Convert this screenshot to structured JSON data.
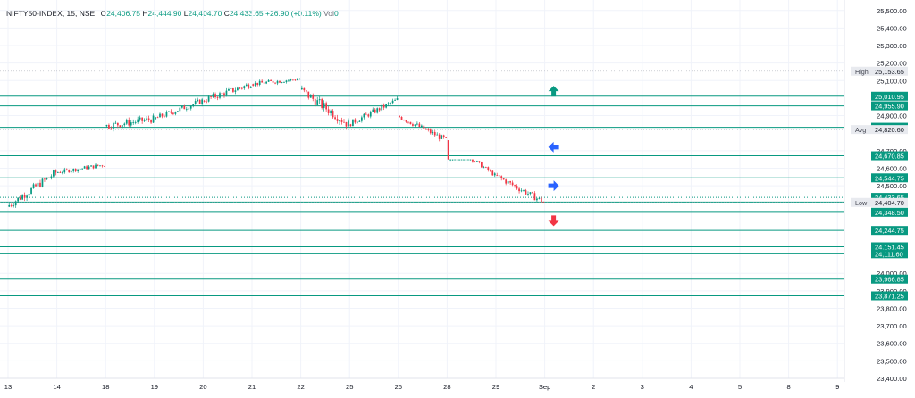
{
  "legend": {
    "symbol": "NIFTY50-INDEX, 15, NSE",
    "o_label": "O",
    "o": "24,406.75",
    "h_label": "H",
    "h": "24,444.90",
    "l_label": "L",
    "l": "24,404.70",
    "c_label": "C",
    "c": "24,433.65",
    "change": "+26.90 (+0.11%)",
    "vol_label": "Vol",
    "vol": "0"
  },
  "colors": {
    "up": "#089981",
    "down": "#f23645",
    "level": "#089981",
    "grid": "#f0f3fa",
    "arrow_blue": "#2962ff",
    "arrow_green": "#089981",
    "arrow_red": "#f23645"
  },
  "chart_data": {
    "type": "candlestick",
    "yaxis": {
      "ylim": [
        23400,
        25560
      ],
      "ticks": [
        {
          "value": 25500,
          "label": "25,500.00"
        },
        {
          "value": 25400,
          "label": "25,400.00"
        },
        {
          "value": 25300,
          "label": "25,300.00"
        },
        {
          "value": 25200,
          "label": "25,200.00"
        },
        {
          "value": 25100,
          "label": "25,100.00"
        },
        {
          "value": 24900,
          "label": "24,900.00"
        },
        {
          "value": 24700,
          "label": "24,700.00"
        },
        {
          "value": 24600,
          "label": "24,600.00"
        },
        {
          "value": 24500,
          "label": "24,500.00"
        },
        {
          "value": 24000,
          "label": "24,000.00"
        },
        {
          "value": 23900,
          "label": "23,900.00"
        },
        {
          "value": 23800,
          "label": "23,800.00"
        },
        {
          "value": 23700,
          "label": "23,700.00"
        },
        {
          "value": 23600,
          "label": "23,600.00"
        },
        {
          "value": 23500,
          "label": "23,500.00"
        },
        {
          "value": 23400,
          "label": "23,400.00"
        }
      ]
    },
    "xaxis": {
      "ticks": [
        {
          "index": 0,
          "label": "13"
        },
        {
          "index": 1,
          "label": "14"
        },
        {
          "index": 2,
          "label": "18"
        },
        {
          "index": 3,
          "label": "19"
        },
        {
          "index": 4,
          "label": "20"
        },
        {
          "index": 5,
          "label": "21"
        },
        {
          "index": 6,
          "label": "22"
        },
        {
          "index": 7,
          "label": "25"
        },
        {
          "index": 8,
          "label": "26"
        },
        {
          "index": 9,
          "label": "28"
        },
        {
          "index": 10,
          "label": "29"
        },
        {
          "index": 11,
          "label": "Sep"
        },
        {
          "index": 12,
          "label": "2"
        },
        {
          "index": 13,
          "label": "3"
        },
        {
          "index": 14,
          "label": "4"
        },
        {
          "index": 15,
          "label": "5"
        },
        {
          "index": 16,
          "label": "8"
        },
        {
          "index": 17,
          "label": "9"
        }
      ]
    },
    "sessions": [
      {
        "label": "13",
        "open": 24380,
        "close": 24575,
        "high": 24600,
        "low": 24350
      },
      {
        "label": "14",
        "open": 24575,
        "close": 24620,
        "high": 24670,
        "low": 24540
      },
      {
        "label": "18",
        "open": 24840,
        "close": 24880,
        "high": 25030,
        "low": 24800
      },
      {
        "label": "19",
        "open": 24880,
        "close": 24985,
        "high": 25010,
        "low": 24820
      },
      {
        "label": "20",
        "open": 24985,
        "close": 25080,
        "high": 25100,
        "low": 24890
      },
      {
        "label": "21",
        "open": 25080,
        "close": 25110,
        "high": 25153.65,
        "low": 25020
      },
      {
        "label": "22",
        "open": 25050,
        "close": 24850,
        "high": 25110,
        "low": 24800
      },
      {
        "label": "25",
        "open": 24850,
        "close": 24990,
        "high": 25010,
        "low": 24830
      },
      {
        "label": "26",
        "open": 24900,
        "close": 24760,
        "high": 24900,
        "low": 24720
      },
      {
        "label": "28",
        "open": 24760,
        "close": 24560,
        "high": 24650,
        "low": 24520
      },
      {
        "label": "29",
        "open": 24560,
        "close": 24406.75,
        "high": 24600,
        "low": 24404.7
      }
    ],
    "levels": [
      {
        "value": 25010.95,
        "label": "25,010.95"
      },
      {
        "value": 24955.9,
        "label": "24,955.90"
      },
      {
        "value": 24833.65,
        "label": "24,833.65"
      },
      {
        "value": 24670.85,
        "label": "24,670.85"
      },
      {
        "value": 24544.75,
        "label": "24,544.75"
      },
      {
        "value": 24406.75,
        "label": "24,406.75"
      },
      {
        "value": 24348.5,
        "label": "24,348.50"
      },
      {
        "value": 24244.75,
        "label": "24,244.75"
      },
      {
        "value": 24151.45,
        "label": "24,151.45"
      },
      {
        "value": 24111.6,
        "label": "24,111.60"
      },
      {
        "value": 23966.85,
        "label": "23,966.85"
      },
      {
        "value": 23871.25,
        "label": "23,871.25"
      }
    ],
    "current_price": {
      "value": 24433.65,
      "label": "24,433.65"
    },
    "tags": [
      {
        "name": "High",
        "value": 25153.65,
        "label": "25,153.65"
      },
      {
        "name": "Avg",
        "value": 24820.6,
        "label": "24,820.60"
      },
      {
        "name": "Low",
        "value": 24404.7,
        "label": "24,404.70"
      }
    ],
    "markers": [
      {
        "type": "arrow-up",
        "color": "green",
        "index": 11,
        "value": 25040
      },
      {
        "type": "arrow-left",
        "color": "blue",
        "index": 11,
        "value": 24720
      },
      {
        "type": "arrow-right",
        "color": "blue",
        "index": 11,
        "value": 24500
      },
      {
        "type": "arrow-down",
        "color": "red",
        "index": 11,
        "value": 24300
      }
    ]
  }
}
